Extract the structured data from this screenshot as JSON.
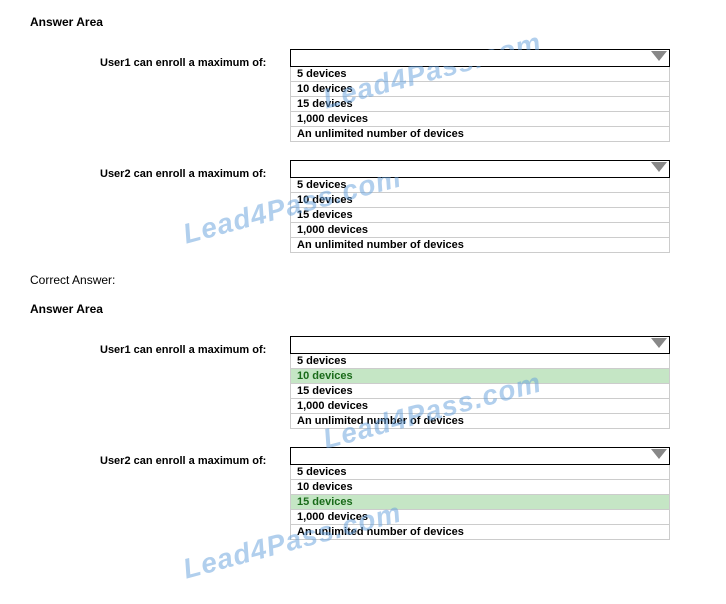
{
  "watermark_text": "Lead4Pass.com",
  "section1": {
    "title": "Answer Area",
    "q1": {
      "label": "User1 can enroll a maximum of:",
      "options": [
        "5 devices",
        "10 devices",
        "15 devices",
        "1,000 devices",
        "An unlimited number of devices"
      ],
      "selected_index": -1
    },
    "q2": {
      "label": "User2 can enroll a maximum of:",
      "options": [
        "5 devices",
        "10 devices",
        "15 devices",
        "1,000 devices",
        "An unlimited number of devices"
      ],
      "selected_index": -1
    }
  },
  "correct_label": "Correct Answer:",
  "section2": {
    "title": "Answer Area",
    "q1": {
      "label": "User1 can enroll a maximum of:",
      "options": [
        "5 devices",
        "10 devices",
        "15 devices",
        "1,000 devices",
        "An unlimited number of devices"
      ],
      "selected_index": 1
    },
    "q2": {
      "label": "User2 can enroll a maximum of:",
      "options": [
        "5 devices",
        "10 devices",
        "15 devices",
        "1,000 devices",
        "An unlimited number of devices"
      ],
      "selected_index": 2
    }
  }
}
